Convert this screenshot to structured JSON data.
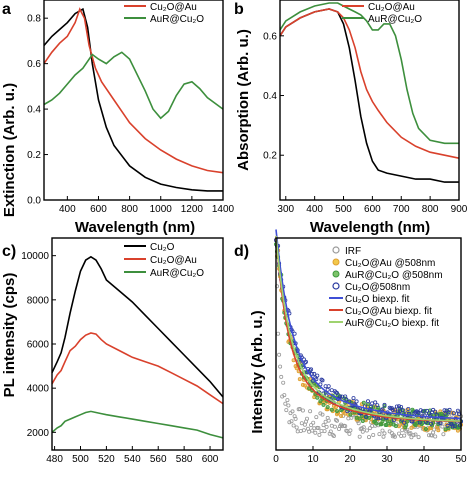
{
  "figure": {
    "chart_data": [
      {
        "panel": "a",
        "type": "line",
        "xlabel": "Wavelength (nm)",
        "ylabel": "Extinction (Arb. u.)",
        "xlim": [
          250,
          1400
        ],
        "ylim": [
          0,
          0.88
        ],
        "xticks": [
          400,
          600,
          800,
          1000,
          1200,
          1400
        ],
        "yticks": [
          0.0,
          0.2,
          0.4,
          0.6,
          0.8
        ],
        "ytick_labels": [
          "0.0",
          "0.2",
          "0.4",
          "0.6",
          "0.8"
        ],
        "legend_position": "top-right",
        "series": [
          {
            "label": "",
            "color": "#000000",
            "x": [
              250,
              300,
              350,
              400,
              450,
              500,
              530,
              560,
              600,
              650,
              700,
              800,
              900,
              1000,
              1100,
              1200,
              1300,
              1400
            ],
            "y": [
              0.68,
              0.72,
              0.75,
              0.78,
              0.82,
              0.84,
              0.76,
              0.6,
              0.44,
              0.32,
              0.24,
              0.15,
              0.1,
              0.07,
              0.055,
              0.045,
              0.04,
              0.04
            ]
          },
          {
            "label": "Cu₂O@Au",
            "color": "#d9412c",
            "x": [
              250,
              300,
              350,
              400,
              450,
              480,
              510,
              540,
              580,
              620,
              700,
              800,
              900,
              1000,
              1100,
              1200,
              1300,
              1400
            ],
            "y": [
              0.6,
              0.65,
              0.69,
              0.72,
              0.78,
              0.84,
              0.8,
              0.68,
              0.58,
              0.52,
              0.44,
              0.34,
              0.27,
              0.22,
              0.18,
              0.15,
              0.13,
              0.12
            ]
          },
          {
            "label": "AuR@Cu₂O",
            "color": "#3d8f3d",
            "x": [
              250,
              300,
              350,
              400,
              450,
              500,
              560,
              600,
              650,
              700,
              750,
              800,
              900,
              950,
              1000,
              1050,
              1100,
              1150,
              1200,
              1250,
              1300,
              1400
            ],
            "y": [
              0.42,
              0.44,
              0.47,
              0.51,
              0.55,
              0.58,
              0.64,
              0.62,
              0.6,
              0.63,
              0.65,
              0.62,
              0.48,
              0.4,
              0.36,
              0.39,
              0.46,
              0.51,
              0.52,
              0.49,
              0.45,
              0.4
            ]
          }
        ]
      },
      {
        "panel": "b",
        "type": "line",
        "xlabel": "Wavelength (nm)",
        "ylabel": "Absorption (Arb. u.)",
        "xlim": [
          280,
          900
        ],
        "ylim": [
          0.05,
          0.72
        ],
        "xticks": [
          300,
          400,
          500,
          600,
          700,
          800,
          900
        ],
        "yticks": [
          0.2,
          0.4,
          0.6
        ],
        "ytick_labels": [
          "0.2",
          "0.4",
          "0.6"
        ],
        "legend_position": "top-right",
        "series": [
          {
            "label": "",
            "color": "#000000",
            "x": [
              280,
              300,
              350,
              400,
              450,
              480,
              500,
              520,
              540,
              560,
              580,
              600,
              620,
              650,
              700,
              750,
              800,
              850,
              900
            ],
            "y": [
              0.6,
              0.63,
              0.66,
              0.68,
              0.69,
              0.68,
              0.64,
              0.56,
              0.45,
              0.33,
              0.24,
              0.18,
              0.15,
              0.14,
              0.13,
              0.12,
              0.12,
              0.11,
              0.11
            ]
          },
          {
            "label": "Cu₂O@Au",
            "color": "#d9412c",
            "x": [
              280,
              300,
              350,
              400,
              450,
              480,
              500,
              520,
              540,
              560,
              580,
              600,
              620,
              650,
              700,
              750,
              800,
              850,
              900
            ],
            "y": [
              0.6,
              0.63,
              0.66,
              0.68,
              0.69,
              0.68,
              0.66,
              0.62,
              0.56,
              0.48,
              0.42,
              0.38,
              0.35,
              0.31,
              0.26,
              0.23,
              0.21,
              0.2,
              0.19
            ]
          },
          {
            "label": "AuR@Cu₂O",
            "color": "#3d8f3d",
            "x": [
              280,
              300,
              350,
              400,
              450,
              480,
              500,
              520,
              540,
              560,
              580,
              600,
              620,
              640,
              660,
              680,
              700,
              720,
              740,
              760,
              800,
              850,
              900
            ],
            "y": [
              0.62,
              0.65,
              0.68,
              0.7,
              0.71,
              0.71,
              0.7,
              0.69,
              0.68,
              0.67,
              0.65,
              0.62,
              0.62,
              0.64,
              0.64,
              0.6,
              0.52,
              0.42,
              0.34,
              0.29,
              0.25,
              0.24,
              0.24
            ]
          }
        ]
      },
      {
        "panel": "c",
        "type": "line",
        "xlabel": "Wavelength (nm)",
        "ylabel": "PL intensity (cps)",
        "xlim": [
          478,
          610
        ],
        "ylim": [
          1200,
          10800
        ],
        "xticks": [
          480,
          500,
          520,
          540,
          560,
          580,
          600
        ],
        "yticks": [
          2000,
          4000,
          6000,
          8000,
          10000
        ],
        "legend_position": "top-right",
        "series": [
          {
            "label": "Cu₂O",
            "color": "#000000",
            "x": [
              478,
              482,
              485,
              488,
              492,
              496,
              500,
              504,
              508,
              512,
              516,
              520,
              530,
              540,
              550,
              560,
              570,
              580,
              590,
              600,
              610
            ],
            "y": [
              4700,
              5200,
              5600,
              6300,
              7400,
              8400,
              9300,
              9800,
              9950,
              9800,
              9400,
              8900,
              8400,
              7900,
              7300,
              6700,
              6100,
              5500,
              4900,
              4300,
              3600
            ]
          },
          {
            "label": "Cu₂O@Au",
            "color": "#d9412c",
            "x": [
              478,
              482,
              485,
              488,
              492,
              496,
              500,
              504,
              508,
              512,
              516,
              520,
              530,
              540,
              550,
              560,
              570,
              580,
              590,
              600,
              610
            ],
            "y": [
              4200,
              4600,
              4800,
              5200,
              5700,
              5900,
              6200,
              6400,
              6500,
              6450,
              6200,
              6000,
              5700,
              5400,
              5200,
              5000,
              4700,
              4400,
              4100,
              3700,
              3300
            ]
          },
          {
            "label": "AuR@Cu₂O",
            "color": "#3d8f3d",
            "x": [
              478,
              482,
              485,
              488,
              492,
              496,
              500,
              504,
              508,
              512,
              516,
              520,
              530,
              540,
              550,
              560,
              570,
              580,
              590,
              600,
              610
            ],
            "y": [
              2000,
              2200,
              2300,
              2500,
              2600,
              2700,
              2800,
              2900,
              2950,
              2900,
              2850,
              2800,
              2700,
              2600,
              2500,
              2400,
              2300,
              2200,
              2100,
              1900,
              1750
            ]
          }
        ]
      },
      {
        "panel": "d",
        "type": "scatter",
        "xlabel": "Time (ns)",
        "ylabel": "Intensity (Arb. u.)",
        "xlim": [
          0,
          50
        ],
        "xticks": [
          0,
          10,
          20,
          30,
          40,
          50
        ],
        "decay_points_per_series": 180,
        "legend_position": "top-right",
        "series": [
          {
            "label": "IRF",
            "kind": "scatter",
            "color": "#9a9a9a",
            "tau1": 0.6,
            "tau2": 2.2,
            "amp": 0.9,
            "floor": 0.12,
            "noise": 0.06
          },
          {
            "label": "Cu₂O@Au @508nm",
            "kind": "scatter",
            "color": "#e0a030",
            "tau1": 3.0,
            "tau2": 12,
            "amp": 0.88,
            "floor": 0.13,
            "noise": 0.045
          },
          {
            "label": "AuR@Cu₂O @508nm",
            "kind": "scatter",
            "color": "#3d9a3d",
            "tau1": 3.4,
            "tau2": 13,
            "amp": 0.88,
            "floor": 0.13,
            "noise": 0.045
          },
          {
            "label": "Cu₂O@508nm",
            "kind": "scatter",
            "color": "#2a3aa0",
            "tau1": 3.8,
            "tau2": 14,
            "amp": 0.9,
            "floor": 0.14,
            "noise": 0.04
          },
          {
            "label": "Cu₂O biexp. fit",
            "kind": "line",
            "color": "#3f4fd6",
            "tau1": 3.8,
            "tau2": 14,
            "amp": 0.9,
            "floor": 0.14
          },
          {
            "label": "Cu₂O@Au biexp. fit",
            "kind": "line",
            "color": "#d9412c",
            "tau1": 3.0,
            "tau2": 12,
            "amp": 0.88,
            "floor": 0.13
          },
          {
            "label": "AuR@Cu₂O biexp. fit",
            "kind": "line",
            "color": "#9fd36f",
            "tau1": 3.4,
            "tau2": 13,
            "amp": 0.88,
            "floor": 0.13
          }
        ]
      }
    ]
  },
  "panels": {
    "b_label": "b",
    "c_label": "c)",
    "d_label": "d)",
    "a_label": "a"
  }
}
